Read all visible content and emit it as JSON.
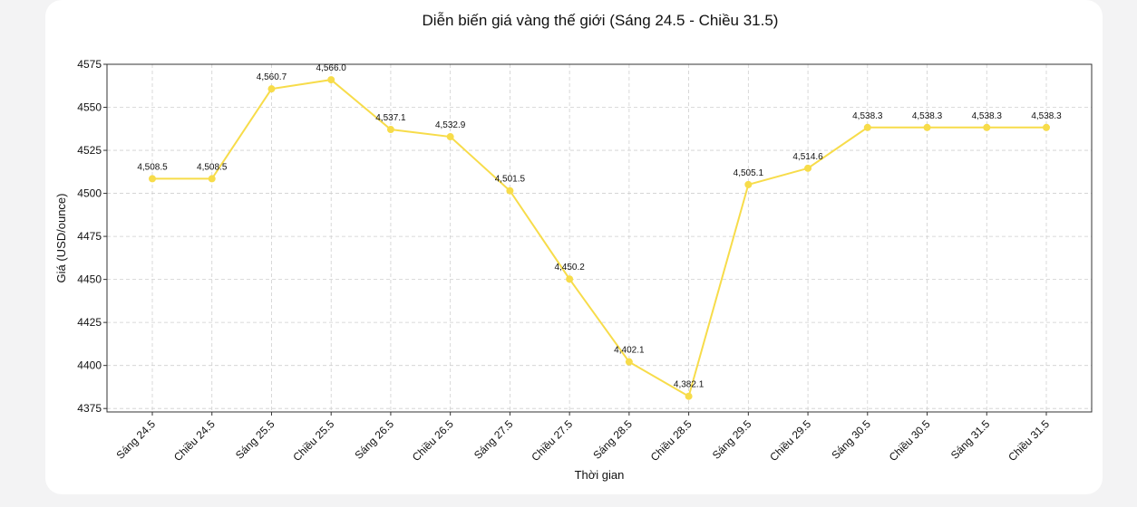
{
  "chart_data": {
    "type": "line",
    "title": "Diễn biến giá vàng thế giới (Sáng 24.5 - Chiều 31.5)",
    "xlabel": "Thời gian",
    "ylabel": "Giá (USD/ounce)",
    "categories": [
      "Sáng 24.5",
      "Chiều 24.5",
      "Sáng 25.5",
      "Chiều 25.5",
      "Sáng 26.5",
      "Chiều 26.5",
      "Sáng 27.5",
      "Chiều 27.5",
      "Sáng 28.5",
      "Chiều 28.5",
      "Sáng 29.5",
      "Chiều 29.5",
      "Sáng 30.5",
      "Chiều 30.5",
      "Sáng 31.5",
      "Chiều 31.5"
    ],
    "values": [
      4508.5,
      4508.5,
      4560.7,
      4566.0,
      4537.1,
      4532.9,
      4501.5,
      4450.2,
      4402.1,
      4382.1,
      4505.1,
      4514.6,
      4538.3,
      4538.3,
      4538.3,
      4538.3
    ],
    "data_labels": [
      "4,508.5",
      "4,508.5",
      "4,560.7",
      "4,566.0",
      "4,537.1",
      "4,532.9",
      "4,501.5",
      "4,450.2",
      "4,402.1",
      "4,382.1",
      "4,505.1",
      "4,514.6",
      "4,538.3",
      "4,538.3",
      "4,538.3",
      "4,538.3"
    ],
    "yticks": [
      4375,
      4400,
      4425,
      4450,
      4475,
      4500,
      4525,
      4550,
      4575
    ],
    "ylim": [
      4373,
      4575
    ],
    "grid": true,
    "line_color": "#f7dc4a"
  }
}
